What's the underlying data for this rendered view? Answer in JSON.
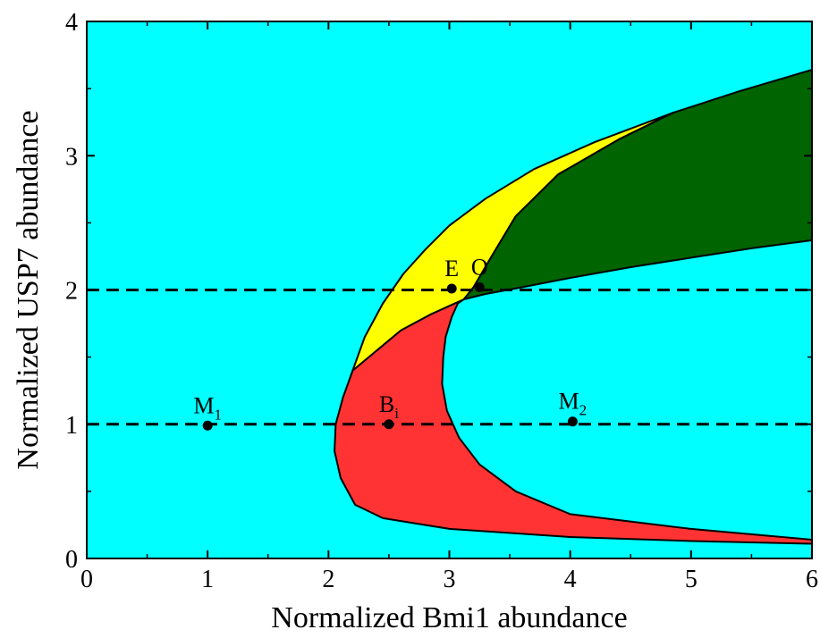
{
  "chart_data": {
    "type": "area",
    "xlabel": "Normalized Bmi1 abundance",
    "ylabel": "Normalized USP7 abundance",
    "xlim": [
      0,
      6
    ],
    "ylim": [
      0,
      4
    ],
    "xticks": [
      0,
      1,
      2,
      3,
      4,
      5,
      6
    ],
    "yticks": [
      0,
      1,
      2,
      3,
      4
    ],
    "xtick_labels": [
      "0",
      "1",
      "2",
      "3",
      "4",
      "5",
      "6"
    ],
    "ytick_labels": [
      "0",
      "1",
      "2",
      "3",
      "4"
    ],
    "grid": false,
    "background_color": "#00FFFF",
    "regions": [
      {
        "color": "#FF3333",
        "boundary": [
          [
            2.2,
            1.4
          ],
          [
            2.12,
            1.2
          ],
          [
            2.06,
            1.0
          ],
          [
            2.05,
            0.8
          ],
          [
            2.1,
            0.6
          ],
          [
            2.22,
            0.4
          ],
          [
            2.45,
            0.3
          ],
          [
            3.0,
            0.22
          ],
          [
            4.0,
            0.16
          ],
          [
            5.0,
            0.13
          ],
          [
            6.0,
            0.11
          ],
          [
            6.0,
            0.14
          ],
          [
            5.0,
            0.22
          ],
          [
            4.0,
            0.33
          ],
          [
            3.55,
            0.5
          ],
          [
            3.25,
            0.7
          ],
          [
            3.08,
            0.9
          ],
          [
            2.98,
            1.1
          ],
          [
            2.94,
            1.3
          ],
          [
            2.95,
            1.5
          ],
          [
            2.97,
            1.65
          ],
          [
            3.02,
            1.8
          ],
          [
            3.07,
            1.9
          ],
          [
            3.12,
            1.93
          ],
          [
            2.85,
            1.82
          ],
          [
            2.6,
            1.7
          ],
          [
            2.4,
            1.55
          ]
        ]
      },
      {
        "color": "#FFFF00",
        "boundary": [
          [
            2.2,
            1.4
          ],
          [
            2.3,
            1.65
          ],
          [
            2.45,
            1.9
          ],
          [
            2.62,
            2.12
          ],
          [
            2.8,
            2.3
          ],
          [
            3.0,
            2.48
          ],
          [
            3.3,
            2.68
          ],
          [
            3.7,
            2.9
          ],
          [
            4.2,
            3.1
          ],
          [
            4.85,
            3.32
          ],
          [
            4.4,
            3.12
          ],
          [
            3.9,
            2.86
          ],
          [
            3.55,
            2.55
          ],
          [
            3.35,
            2.25
          ],
          [
            3.2,
            2.02
          ],
          [
            3.12,
            1.93
          ],
          [
            2.85,
            1.82
          ],
          [
            2.6,
            1.7
          ],
          [
            2.4,
            1.55
          ]
        ]
      },
      {
        "color": "#006400",
        "boundary": [
          [
            3.12,
            1.93
          ],
          [
            3.2,
            2.02
          ],
          [
            3.35,
            2.25
          ],
          [
            3.55,
            2.55
          ],
          [
            3.9,
            2.86
          ],
          [
            4.4,
            3.12
          ],
          [
            4.85,
            3.32
          ],
          [
            5.4,
            3.48
          ],
          [
            6.0,
            3.64
          ],
          [
            6.0,
            2.37
          ],
          [
            5.5,
            2.31
          ],
          [
            5.0,
            2.24
          ],
          [
            4.5,
            2.17
          ],
          [
            4.0,
            2.09
          ],
          [
            3.6,
            2.02
          ],
          [
            3.3,
            1.97
          ]
        ]
      }
    ],
    "dashed_lines": [
      {
        "y": 1.0
      },
      {
        "y": 2.0
      }
    ],
    "points": [
      {
        "label": "M",
        "sub": "1",
        "x": 1.0,
        "y": 0.99
      },
      {
        "label": "B",
        "sub": "i",
        "x": 2.5,
        "y": 1.0
      },
      {
        "label": "M",
        "sub": "2",
        "x": 4.02,
        "y": 1.02
      },
      {
        "label": "E",
        "sub": "",
        "x": 3.02,
        "y": 2.01
      },
      {
        "label": "O",
        "sub": "",
        "x": 3.25,
        "y": 2.02
      }
    ]
  }
}
